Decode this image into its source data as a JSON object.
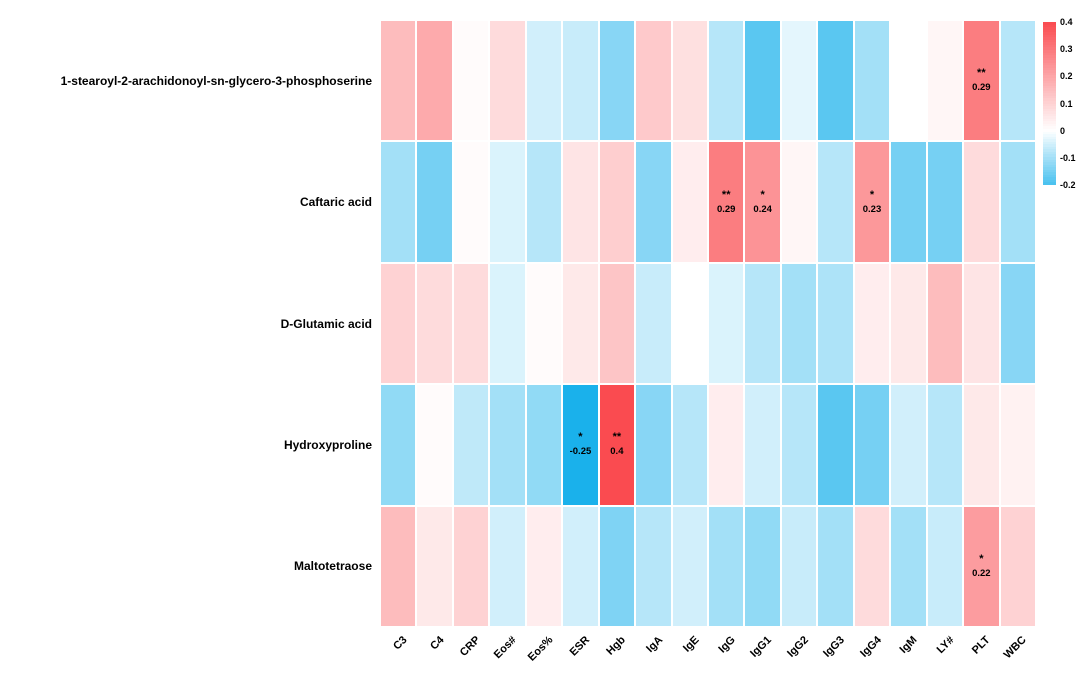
{
  "chart_data": {
    "type": "heatmap",
    "title": "",
    "rows": [
      "1-stearoyl-2-arachidonoyl-sn-glycero-3-phosphoserine",
      "Caftaric acid",
      "D-Glutamic acid",
      "Hydroxyproline",
      "Maltotetraose"
    ],
    "columns": [
      "C3",
      "C4",
      "CRP",
      "Eos#",
      "Eos%",
      "ESR",
      "Hgb",
      "IgA",
      "IgE",
      "IgG",
      "IgG1",
      "IgG2",
      "IgG3",
      "IgG4",
      "IgM",
      "LY#",
      "PLT",
      "WBC"
    ],
    "values": [
      [
        0.15,
        0.19,
        0.01,
        0.08,
        -0.05,
        -0.06,
        -0.13,
        0.12,
        0.07,
        -0.08,
        -0.18,
        -0.03,
        -0.18,
        -0.1,
        0.0,
        0.02,
        0.29,
        -0.08
      ],
      [
        -0.1,
        -0.15,
        0.01,
        -0.04,
        -0.08,
        0.06,
        0.11,
        -0.13,
        0.04,
        0.29,
        0.24,
        0.02,
        -0.08,
        0.23,
        -0.15,
        -0.15,
        0.08,
        -0.1
      ],
      [
        0.1,
        0.08,
        0.08,
        -0.04,
        0.01,
        0.05,
        0.13,
        -0.06,
        0.0,
        -0.04,
        -0.08,
        -0.1,
        -0.09,
        0.04,
        0.05,
        0.15,
        0.06,
        -0.13
      ],
      [
        -0.12,
        0.01,
        -0.07,
        -0.1,
        -0.12,
        -0.25,
        0.4,
        -0.13,
        -0.08,
        0.04,
        -0.05,
        -0.08,
        -0.18,
        -0.15,
        -0.05,
        -0.08,
        0.05,
        0.03
      ],
      [
        0.15,
        0.05,
        0.1,
        -0.05,
        0.04,
        -0.05,
        -0.14,
        -0.08,
        -0.05,
        -0.1,
        -0.12,
        -0.06,
        -0.1,
        0.08,
        -0.1,
        -0.06,
        0.22,
        0.1
      ]
    ],
    "annotations": [
      {
        "row": 0,
        "col": 16,
        "stars": "**",
        "label": "0.29"
      },
      {
        "row": 1,
        "col": 9,
        "stars": "**",
        "label": "0.29"
      },
      {
        "row": 1,
        "col": 10,
        "stars": "*",
        "label": "0.24"
      },
      {
        "row": 1,
        "col": 13,
        "stars": "*",
        "label": "0.23"
      },
      {
        "row": 3,
        "col": 5,
        "stars": "*",
        "label": "-0.25"
      },
      {
        "row": 3,
        "col": 6,
        "stars": "**",
        "label": "0.4"
      },
      {
        "row": 4,
        "col": 16,
        "stars": "*",
        "label": "0.22"
      }
    ],
    "colorscale": {
      "positive_color": "#FA4B50",
      "negative_color": "#1AB1EB",
      "zero_color": "#FFFFFF",
      "positive_max": 0.4,
      "negative_max": -0.25
    },
    "colorbar": {
      "top_value": 0.4,
      "bottom_value": -0.2,
      "ticks": [
        "0.4",
        "0.3",
        "0.2",
        "0.1",
        "0",
        "-0.1",
        "-0.2"
      ]
    },
    "legend_position": "top-right",
    "grid": false
  }
}
